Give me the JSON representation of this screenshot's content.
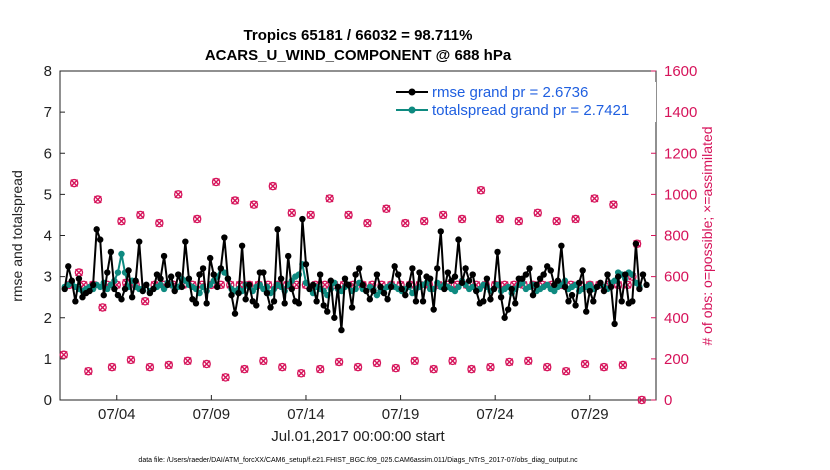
{
  "chart_data": {
    "type": "line",
    "title_line1": "Tropics 65181 / 66032 = 98.711%",
    "title_line2": "ACARS_U_WIND_COMPONENT @ 688 hPa",
    "xlabel": "Jul.01,2017 00:00:00 start",
    "ylabel_left": "rmse and totalspread",
    "ylabel_right": "# of obs: o=possible; ×=assimilated",
    "xlim": [
      0,
      31.5
    ],
    "ylim_left": [
      0,
      8
    ],
    "ylim_right": [
      0,
      1600
    ],
    "x_ticks": [
      {
        "x": 3,
        "label": "07/04"
      },
      {
        "x": 8,
        "label": "07/09"
      },
      {
        "x": 13,
        "label": "07/14"
      },
      {
        "x": 18,
        "label": "07/19"
      },
      {
        "x": 23,
        "label": "07/24"
      },
      {
        "x": 28,
        "label": "07/29"
      }
    ],
    "y_ticks_left": [
      "0",
      "1",
      "2",
      "3",
      "4",
      "5",
      "6",
      "7",
      "8"
    ],
    "y_ticks_right": [
      "0",
      "200",
      "400",
      "600",
      "800",
      "1000",
      "1200",
      "1400",
      "1600"
    ],
    "legend": [
      {
        "label": "rmse grand pr = 2.6736",
        "color": "#000000"
      },
      {
        "label": "totalspread grand pr = 2.7421",
        "color": "#0e8a80"
      }
    ],
    "colors": {
      "rmse": "#000000",
      "spread": "#0e8a80",
      "obs": "#d6135a",
      "legend_text": "#1f5fe0"
    },
    "series": [
      {
        "name": "rmse",
        "values": [
          2.7,
          3.25,
          2.9,
          2.4,
          2.95,
          2.5,
          2.6,
          2.65,
          2.8,
          4.15,
          3.9,
          2.55,
          3.1,
          3.6,
          2.7,
          2.55,
          2.45,
          2.7,
          3.15,
          2.5,
          2.9,
          3.85,
          2.65,
          2.8,
          2.6,
          2.7,
          3.05,
          2.95,
          3.5,
          2.8,
          3.0,
          2.65,
          3.05,
          2.75,
          3.85,
          2.95,
          2.45,
          2.35,
          3.05,
          3.2,
          2.35,
          3.45,
          3.05,
          2.75,
          3.2,
          3.95,
          2.95,
          2.55,
          2.1,
          2.6,
          3.75,
          2.45,
          2.8,
          2.4,
          2.3,
          3.1,
          3.1,
          2.6,
          2.25,
          2.4,
          4.15,
          2.95,
          2.35,
          3.5,
          2.7,
          2.4,
          2.35,
          4.4,
          3.3,
          2.7,
          2.8,
          2.4,
          3.05,
          2.3,
          2.15,
          2.9,
          2.0,
          2.75,
          1.7,
          2.95,
          2.8,
          2.25,
          3.05,
          3.2,
          2.8,
          2.65,
          2.45,
          2.65,
          3.05,
          2.75,
          2.6,
          2.45,
          2.75,
          3.25,
          3.05,
          2.7,
          2.55,
          2.8,
          3.2,
          2.4,
          3.1,
          2.4,
          3.0,
          2.95,
          2.2,
          3.2,
          4.1,
          2.7,
          3.1,
          2.9,
          3.0,
          3.9,
          2.85,
          3.2,
          2.9,
          3.05,
          2.65,
          2.35,
          2.4,
          2.95,
          2.45,
          2.7,
          3.6,
          2.5,
          2.0,
          2.2,
          2.7,
          2.35,
          2.95,
          2.95,
          3.05,
          3.2,
          2.55,
          2.8,
          2.95,
          3.05,
          3.25,
          3.15,
          2.8,
          2.9,
          3.75,
          2.75,
          2.4,
          2.55,
          2.3,
          2.85,
          3.15,
          2.15,
          2.65,
          2.4,
          2.75,
          2.85,
          2.65,
          3.05,
          2.75,
          1.85,
          3.0,
          2.4,
          3.05,
          2.35,
          2.4,
          3.8,
          2.7,
          3.05,
          2.8
        ],
        "x_start": 0.25,
        "x_step": 0.1875
      },
      {
        "name": "totalspread",
        "values": [
          2.75,
          2.8,
          2.85,
          2.75,
          2.7,
          2.65,
          2.7,
          2.75,
          2.7,
          2.8,
          2.75,
          2.85,
          2.7,
          2.8,
          2.9,
          3.1,
          3.55,
          3.1,
          2.75,
          2.9,
          2.75,
          2.7,
          2.7,
          2.8,
          2.65,
          2.7,
          2.75,
          2.8,
          2.7,
          2.85,
          2.8,
          2.7,
          2.75,
          2.95,
          2.9,
          2.8,
          2.75,
          2.7,
          2.6,
          2.75,
          2.65,
          2.8,
          2.9,
          3.0,
          3.2,
          3.1,
          2.95,
          2.7,
          2.65,
          2.7,
          2.65,
          2.8,
          2.75,
          2.65,
          2.75,
          2.8,
          2.7,
          2.75,
          2.6,
          2.7,
          2.8,
          2.75,
          2.65,
          2.8,
          2.9,
          3.0,
          3.05,
          3.3,
          2.85,
          2.7,
          2.6,
          2.75,
          2.7,
          2.65,
          2.55,
          2.7,
          2.85,
          2.7,
          2.65,
          2.75,
          2.8,
          2.65,
          2.7,
          2.85,
          2.7,
          2.65,
          2.75,
          2.7,
          2.55,
          2.65,
          2.7,
          2.75,
          2.8,
          2.75,
          2.7,
          2.65,
          2.7,
          2.75,
          2.6,
          2.7,
          2.75,
          2.8,
          2.85,
          2.7,
          2.7,
          2.85,
          2.75,
          2.8,
          2.75,
          2.7,
          2.65,
          2.75,
          2.9,
          2.8,
          2.7,
          2.75,
          2.65,
          2.7,
          2.8,
          2.75,
          2.65,
          2.7,
          2.8,
          2.65,
          2.7,
          2.75,
          2.6,
          2.7,
          2.8,
          2.85,
          2.7,
          2.75,
          2.8,
          2.65,
          2.7,
          2.75,
          2.8,
          2.7,
          2.65,
          2.75,
          2.8,
          2.9,
          2.7,
          2.75,
          2.8,
          2.65,
          2.7,
          2.75,
          2.8,
          2.7,
          2.75,
          2.8,
          2.75,
          2.7,
          2.85,
          2.9,
          3.1,
          3.05,
          2.95,
          3.1,
          3.05,
          2.85,
          2.75
        ],
        "x_start": 0.25,
        "x_step": 0.1875
      },
      {
        "name": "obs_assimilated",
        "points": [
          [
            0.2,
            220
          ],
          [
            0.5,
            560
          ],
          [
            0.75,
            1055
          ],
          [
            1.0,
            620
          ],
          [
            1.25,
            560
          ],
          [
            1.5,
            140
          ],
          [
            1.75,
            560
          ],
          [
            2.0,
            975
          ],
          [
            2.25,
            450
          ],
          [
            2.5,
            560
          ],
          [
            2.75,
            160
          ],
          [
            3.0,
            560
          ],
          [
            3.25,
            870
          ],
          [
            3.5,
            570
          ],
          [
            3.75,
            195
          ],
          [
            4.0,
            560
          ],
          [
            4.25,
            900
          ],
          [
            4.5,
            480
          ],
          [
            4.75,
            160
          ],
          [
            5.0,
            560
          ],
          [
            5.25,
            860
          ],
          [
            5.5,
            560
          ],
          [
            5.75,
            170
          ],
          [
            6.0,
            560
          ],
          [
            6.25,
            1000
          ],
          [
            6.5,
            560
          ],
          [
            6.75,
            190
          ],
          [
            7.0,
            560
          ],
          [
            7.25,
            880
          ],
          [
            7.5,
            560
          ],
          [
            7.75,
            175
          ],
          [
            8.0,
            560
          ],
          [
            8.25,
            1060
          ],
          [
            8.5,
            560
          ],
          [
            8.75,
            110
          ],
          [
            9.0,
            560
          ],
          [
            9.25,
            970
          ],
          [
            9.5,
            560
          ],
          [
            9.75,
            150
          ],
          [
            10.0,
            560
          ],
          [
            10.25,
            950
          ],
          [
            10.5,
            560
          ],
          [
            10.75,
            190
          ],
          [
            11.0,
            560
          ],
          [
            11.25,
            1040
          ],
          [
            11.5,
            560
          ],
          [
            11.75,
            160
          ],
          [
            12.0,
            560
          ],
          [
            12.25,
            910
          ],
          [
            12.5,
            560
          ],
          [
            12.75,
            130
          ],
          [
            13.0,
            560
          ],
          [
            13.25,
            900
          ],
          [
            13.5,
            560
          ],
          [
            13.75,
            150
          ],
          [
            14.0,
            560
          ],
          [
            14.25,
            980
          ],
          [
            14.5,
            560
          ],
          [
            14.75,
            185
          ],
          [
            15.0,
            560
          ],
          [
            15.25,
            900
          ],
          [
            15.5,
            560
          ],
          [
            15.75,
            160
          ],
          [
            16.0,
            560
          ],
          [
            16.25,
            860
          ],
          [
            16.5,
            560
          ],
          [
            16.75,
            180
          ],
          [
            17.0,
            560
          ],
          [
            17.25,
            930
          ],
          [
            17.5,
            560
          ],
          [
            17.75,
            155
          ],
          [
            18.0,
            560
          ],
          [
            18.25,
            860
          ],
          [
            18.5,
            560
          ],
          [
            18.75,
            190
          ],
          [
            19.0,
            560
          ],
          [
            19.25,
            870
          ],
          [
            19.5,
            560
          ],
          [
            19.75,
            150
          ],
          [
            20.0,
            560
          ],
          [
            20.25,
            900
          ],
          [
            20.5,
            560
          ],
          [
            20.75,
            190
          ],
          [
            21.0,
            560
          ],
          [
            21.25,
            880
          ],
          [
            21.5,
            560
          ],
          [
            21.75,
            150
          ],
          [
            22.0,
            560
          ],
          [
            22.25,
            1020
          ],
          [
            22.5,
            560
          ],
          [
            22.75,
            160
          ],
          [
            23.0,
            560
          ],
          [
            23.25,
            880
          ],
          [
            23.5,
            560
          ],
          [
            23.75,
            185
          ],
          [
            24.0,
            560
          ],
          [
            24.25,
            870
          ],
          [
            24.5,
            560
          ],
          [
            24.75,
            190
          ],
          [
            25.0,
            560
          ],
          [
            25.25,
            910
          ],
          [
            25.5,
            560
          ],
          [
            25.75,
            160
          ],
          [
            26.0,
            560
          ],
          [
            26.25,
            870
          ],
          [
            26.5,
            560
          ],
          [
            26.75,
            140
          ],
          [
            27.0,
            560
          ],
          [
            27.25,
            880
          ],
          [
            27.5,
            560
          ],
          [
            27.75,
            175
          ],
          [
            28.0,
            560
          ],
          [
            28.25,
            980
          ],
          [
            28.5,
            560
          ],
          [
            28.75,
            160
          ],
          [
            29.0,
            560
          ],
          [
            29.25,
            950
          ],
          [
            29.5,
            560
          ],
          [
            29.75,
            170
          ],
          [
            30.0,
            560
          ],
          [
            30.25,
            600
          ],
          [
            30.5,
            760
          ],
          [
            30.75,
            0
          ]
        ]
      }
    ]
  },
  "footer": {
    "datafile": "data file: /Users/raeder/DAI/ATM_forcXX/CAM6_setup/f.e21.FHIST_BGC.f09_025.CAM6assim.011/Diags_NTrS_2017-07/obs_diag_output.nc"
  }
}
